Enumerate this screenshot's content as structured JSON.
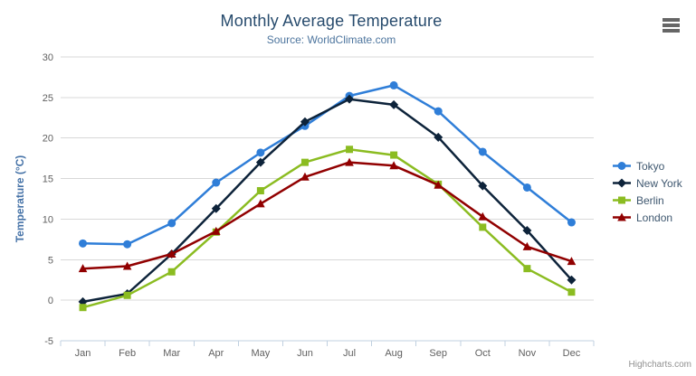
{
  "credit": "Highcharts.com",
  "icons": {
    "menu_icon": "hamburger-icon"
  },
  "chart_data": {
    "type": "line",
    "title": "Monthly Average Temperature",
    "subtitle": "Source: WorldClimate.com",
    "xlabel": "",
    "ylabel": "Temperature (°C)",
    "ylim": [
      -5,
      30
    ],
    "yticks": [
      -5,
      0,
      5,
      10,
      15,
      20,
      25,
      30
    ],
    "grid": true,
    "legend_position": "right",
    "categories": [
      "Jan",
      "Feb",
      "Mar",
      "Apr",
      "May",
      "Jun",
      "Jul",
      "Aug",
      "Sep",
      "Oct",
      "Nov",
      "Dec"
    ],
    "series": [
      {
        "name": "Tokyo",
        "color": "#2f7ed8",
        "marker": "circle",
        "values": [
          7.0,
          6.9,
          9.5,
          14.5,
          18.2,
          21.5,
          25.2,
          26.5,
          23.3,
          18.3,
          13.9,
          9.6
        ]
      },
      {
        "name": "New York",
        "color": "#0d233a",
        "marker": "diamond",
        "values": [
          -0.2,
          0.8,
          5.7,
          11.3,
          17.0,
          22.0,
          24.8,
          24.1,
          20.1,
          14.1,
          8.6,
          2.5
        ]
      },
      {
        "name": "Berlin",
        "color": "#8bbc21",
        "marker": "square",
        "values": [
          -0.9,
          0.6,
          3.5,
          8.4,
          13.5,
          17.0,
          18.6,
          17.9,
          14.3,
          9.0,
          3.9,
          1.0
        ]
      },
      {
        "name": "London",
        "color": "#910000",
        "marker": "triangle",
        "values": [
          3.9,
          4.2,
          5.7,
          8.5,
          11.9,
          15.2,
          17.0,
          16.6,
          14.2,
          10.3,
          6.6,
          4.8
        ]
      }
    ],
    "style": {
      "title_color": "#274b6d",
      "subtitle_color": "#4d759e",
      "axis_label_color": "#606060",
      "y_title_color": "#4572a7",
      "grid_color": "#d8d8d8",
      "axis_line_color": "#c0d0e0",
      "legend_text_color": "#3e576f"
    }
  }
}
